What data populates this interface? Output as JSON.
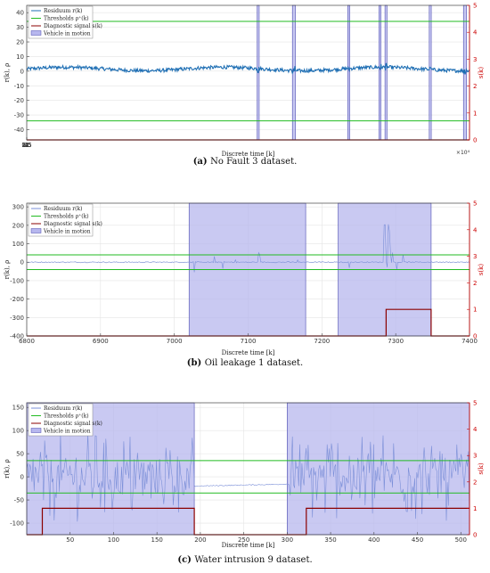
{
  "chart_data": [
    {
      "type": "line",
      "panel_label": "(a)",
      "caption": "No Fault 3 dataset.",
      "xlabel": "Discrete time [k]",
      "ylabel": "r(k), ρ",
      "ylabel_right": "s(k)",
      "xlim": [
        0,
        44000
      ],
      "ylim": [
        -47,
        45
      ],
      "ylim_right": [
        0,
        5
      ],
      "x_ticks": [
        0.5,
        1,
        1.5,
        2,
        2.5,
        3,
        3.5,
        4
      ],
      "x_multiplier": "×10⁴",
      "y_ticks": [
        -40,
        -30,
        -20,
        -10,
        0,
        10,
        20,
        30,
        40
      ],
      "y_right_ticks": [
        0,
        1,
        2,
        3,
        4,
        5
      ],
      "legend": [
        "Residuum r(k)",
        "Thresholds ρ⁺(k)",
        "Diagnostic signal s(k)",
        "Vehicle in motion"
      ],
      "legend_position": "top-left",
      "threshold": 34,
      "residual_level": 1.5,
      "motion_intervals": [
        [
          22900,
          23100
        ],
        [
          26400,
          26700
        ],
        [
          31900,
          32100
        ],
        [
          35000,
          35200
        ],
        [
          35600,
          35800
        ],
        [
          40000,
          40200
        ],
        [
          43400,
          43700
        ]
      ],
      "diagnostic_signal": [
        [
          0,
          0
        ],
        [
          44000,
          0
        ]
      ]
    },
    {
      "type": "line",
      "panel_label": "(b)",
      "caption": "Oil leakage 1 dataset.",
      "xlabel": "Discrete time [k]",
      "ylabel": "r(k), ρ",
      "ylabel_right": "s(k)",
      "xlim": [
        6800,
        7400
      ],
      "ylim": [
        -400,
        320
      ],
      "ylim_right": [
        0,
        5
      ],
      "x_ticks": [
        6800,
        6900,
        7000,
        7100,
        7200,
        7300,
        7400
      ],
      "y_ticks": [
        -400,
        -300,
        -200,
        -100,
        0,
        100,
        200,
        300
      ],
      "y_right_ticks": [
        0,
        1,
        2,
        3,
        4,
        5
      ],
      "legend": [
        "Residuum r(k)",
        "Thresholds ρ⁺(k)",
        "Diagnostic signal s(k)",
        "Vehicle in motion"
      ],
      "legend_position": "top-left",
      "threshold": 40,
      "motion_intervals": [
        [
          7020,
          7178
        ],
        [
          7222,
          7348
        ]
      ],
      "diagnostic_signal": [
        [
          6800,
          0
        ],
        [
          7287,
          0
        ],
        [
          7287,
          1
        ],
        [
          7348,
          1
        ],
        [
          7348,
          0
        ],
        [
          7400,
          0
        ]
      ]
    },
    {
      "type": "line",
      "panel_label": "(c)",
      "caption": "Water intrusion 9 dataset.",
      "xlabel": "Discrete time [k]",
      "ylabel": "r(k), ρ",
      "ylabel_right": "s(k)",
      "xlim": [
        0,
        510
      ],
      "ylim": [
        -125,
        160
      ],
      "ylim_right": [
        0,
        5
      ],
      "x_ticks": [
        50,
        100,
        150,
        200,
        250,
        300,
        350,
        400,
        450,
        500
      ],
      "y_ticks": [
        -100,
        -50,
        0,
        50,
        100,
        150
      ],
      "y_right_ticks": [
        0,
        1,
        2,
        3,
        4,
        5
      ],
      "legend": [
        "Residuum r(k)",
        "Thresholds ρ⁺(k)",
        "Diagnostic signal s(k)",
        "Vehicle in motion"
      ],
      "legend_position": "top-left",
      "threshold": 35,
      "motion_intervals": [
        [
          0,
          193
        ],
        [
          300,
          510
        ]
      ],
      "diagnostic_signal": [
        [
          0,
          0
        ],
        [
          18,
          0
        ],
        [
          18,
          1
        ],
        [
          193,
          1
        ],
        [
          193,
          0
        ],
        [
          322,
          0
        ],
        [
          322,
          1
        ],
        [
          510,
          1
        ]
      ]
    }
  ]
}
